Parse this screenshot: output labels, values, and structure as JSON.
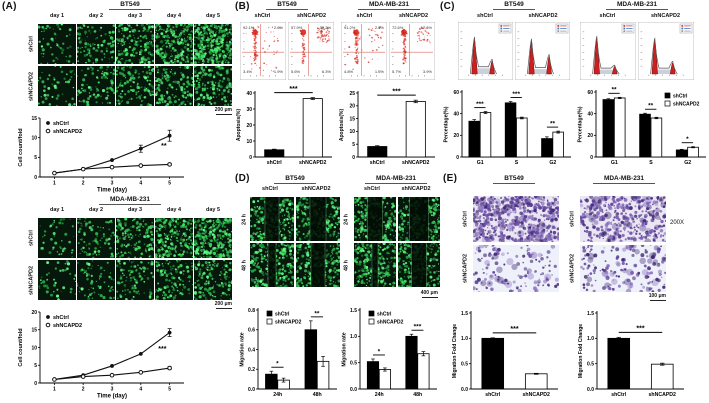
{
  "panelA": {
    "label": "(A)",
    "row_labels": [
      "shCtrl",
      "shNCAPD2"
    ],
    "blocks": [
      {
        "cell_line": "BT549",
        "days": [
          "day 1",
          "day 2",
          "day 3",
          "day 4",
          "day 5"
        ],
        "scale_bar": "200 μm"
      },
      {
        "cell_line": "MDA-MB-231",
        "days": [
          "day 1",
          "day 2",
          "day 3",
          "day 4",
          "day 5"
        ],
        "scale_bar": "200 μm"
      }
    ]
  },
  "panelB": {
    "label": "(B)",
    "cell_lines": [
      "BT549",
      "MDA-MB-231"
    ],
    "conditions": [
      "shCtrl",
      "shNCAPD2"
    ],
    "flow_plots": [
      {
        "cell_line": "BT549",
        "condition": "shCtrl",
        "quadrants": {
          "ul": "92.1%",
          "ur": "2.6%",
          "ll": "3.4%",
          "lr": "1.9%"
        }
      },
      {
        "cell_line": "BT549",
        "condition": "shNCAPD2",
        "quadrants": {
          "ul": "57.9%",
          "ur": "30.2%",
          "ll": "5.6%",
          "lr": "6.3%"
        }
      },
      {
        "cell_line": "MDA-MB-231",
        "condition": "shCtrl",
        "quadrants": {
          "ul": "91.2%",
          "ur": "2.5%",
          "ll": "4.8%",
          "lr": "1.5%"
        }
      },
      {
        "cell_line": "MDA-MB-231",
        "condition": "shNCAPD2",
        "quadrants": {
          "ul": "72.6%",
          "ur": "17.8%",
          "ll": "5.7%",
          "lr": "3.9%"
        }
      }
    ]
  },
  "panelC": {
    "label": "(C)",
    "cell_lines": [
      "BT549",
      "MDA-MB-231"
    ],
    "conditions": [
      "shCtrl",
      "shNCAPD2"
    ]
  },
  "panelD": {
    "label": "(D)",
    "cell_lines": [
      "BT549",
      "MDA-MB-231"
    ],
    "conditions": [
      "shCtrl",
      "shNCAPD2"
    ],
    "row_labels": [
      "24 h",
      "48 h"
    ],
    "scale_bar": "400 μm"
  },
  "panelE": {
    "label": "(E)",
    "cell_lines": [
      "BT549",
      "MDA-MB-231"
    ],
    "conditions": [
      "shCtrl",
      "shNCAPD2"
    ],
    "magnification": "200X",
    "scale_bar": "100 μm"
  },
  "legend_labels": [
    "shCtrl",
    "shNCAPD2"
  ],
  "colors": {
    "shCtrl_bar": "#000000",
    "shNCAPD2_bar": "#ffffff",
    "flow_scatter": "#e23a2e",
    "cellcycle_peak": "#cc2020",
    "micro_green": "#39e25b",
    "transwell_purple": "#5a3f96"
  },
  "chart_data": [
    {
      "id": "bt549-growth",
      "type": "line",
      "cell_line": "BT549",
      "x": [
        1,
        2,
        3,
        4,
        5
      ],
      "xlabel": "Time (day)",
      "ylabel": "Cell count/fold",
      "ylim": [
        0,
        15
      ],
      "yticks": [
        0,
        5,
        10,
        15
      ],
      "series": [
        {
          "name": "shCtrl",
          "marker": "filled",
          "values": [
            1,
            2,
            4.3,
            7.2,
            10.5
          ],
          "errors": [
            0,
            0,
            0,
            0.9,
            1.4
          ]
        },
        {
          "name": "shNCAPD2",
          "marker": "open",
          "values": [
            1,
            2,
            2.5,
            2.9,
            3.2
          ],
          "errors": [
            0,
            0,
            0,
            0,
            0.3
          ]
        }
      ],
      "sig": {
        "label": "**",
        "x": 4.8,
        "y": 7.4
      },
      "legend": [
        "shCtrl",
        "shNCAPD2"
      ]
    },
    {
      "id": "mda-growth",
      "type": "line",
      "cell_line": "MDA-MB-231",
      "x": [
        1,
        2,
        3,
        4,
        5
      ],
      "xlabel": "Time (day)",
      "ylabel": "Cell count/fold",
      "ylim": [
        0,
        20
      ],
      "yticks": [
        0,
        5,
        10,
        15,
        20
      ],
      "series": [
        {
          "name": "shCtrl",
          "marker": "filled",
          "values": [
            1,
            2.2,
            4.8,
            8.2,
            14.2
          ],
          "errors": [
            0,
            0,
            0,
            0,
            1.1
          ]
        },
        {
          "name": "shNCAPD2",
          "marker": "open",
          "values": [
            1,
            1.8,
            2.2,
            3,
            4.2
          ],
          "errors": [
            0,
            0,
            0,
            0,
            0.4
          ]
        }
      ],
      "sig": {
        "label": "***",
        "x": 4.75,
        "y": 9
      },
      "legend": [
        "shCtrl",
        "shNCAPD2"
      ]
    },
    {
      "id": "bt549-apoptosis",
      "type": "bar",
      "cell_line": "BT549",
      "ylabel": "Apoptosis(%)",
      "categories": [
        "shCtrl",
        "shNCAPD2"
      ],
      "values": [
        4.5,
        36.5
      ],
      "errors": [
        0.4,
        0.6
      ],
      "colors": [
        "#000000",
        "#ffffff"
      ],
      "ylim": [
        0,
        40
      ],
      "yticks": [
        0,
        10,
        20,
        30,
        40
      ],
      "sig": "***"
    },
    {
      "id": "mda-apoptosis",
      "type": "bar",
      "cell_line": "MDA-MB-231",
      "ylabel": "Apoptosis(%)",
      "categories": [
        "shCtrl",
        "shNCAPD2"
      ],
      "values": [
        4.1,
        21.7
      ],
      "errors": [
        0.3,
        0.5
      ],
      "colors": [
        "#000000",
        "#ffffff"
      ],
      "ylim": [
        0,
        25
      ],
      "yticks": [
        0,
        5,
        10,
        15,
        20,
        25
      ],
      "sig": "***"
    },
    {
      "id": "bt549-cellcycle",
      "type": "grouped-bar",
      "cell_line": "BT549",
      "ylabel": "Percentage(%)",
      "categories": [
        "G1",
        "S",
        "G2"
      ],
      "ylim": [
        0,
        60
      ],
      "yticks": [
        0,
        20,
        40,
        60
      ],
      "series": [
        {
          "name": "shCtrl",
          "color": "#000000",
          "values": [
            33,
            50,
            17
          ],
          "errors": [
            1.5,
            1.2,
            1.6
          ]
        },
        {
          "name": "shNCAPD2",
          "color": "#ffffff",
          "values": [
            41,
            36,
            23
          ],
          "errors": [
            0.9,
            0.8,
            0.9
          ]
        }
      ],
      "sig": [
        "***",
        "***",
        "**"
      ],
      "legend": false
    },
    {
      "id": "mda-cellcycle",
      "type": "grouped-bar",
      "cell_line": "MDA-MB-231",
      "ylabel": "Percentage(%)",
      "categories": [
        "G1",
        "S",
        "G2"
      ],
      "ylim": [
        0,
        60
      ],
      "yticks": [
        0,
        20,
        40,
        60
      ],
      "series": [
        {
          "name": "shCtrl",
          "color": "#000000",
          "values": [
            53,
            39.5,
            6.5
          ],
          "errors": [
            0.8,
            0.9,
            0.6
          ]
        },
        {
          "name": "shNCAPD2",
          "color": "#ffffff",
          "values": [
            54.5,
            36,
            9
          ],
          "errors": [
            0.6,
            0.7,
            0.5
          ]
        }
      ],
      "sig": [
        "**",
        "**",
        "*"
      ],
      "legend": "tr"
    },
    {
      "id": "bt549-migration-rate",
      "type": "grouped-bar",
      "cell_line": "BT549",
      "ylabel": "Migration rate",
      "categories": [
        "24h",
        "48h"
      ],
      "ylim": [
        0,
        0.8
      ],
      "yticks": [
        0,
        0.2,
        0.4,
        0.6,
        0.8
      ],
      "ytick_labels": [
        "0.0",
        "0.2",
        "0.4",
        "0.6",
        "0.8"
      ],
      "series": [
        {
          "name": "shCtrl",
          "color": "#000000",
          "values": [
            0.15,
            0.6
          ],
          "errors": [
            0.03,
            0.09
          ]
        },
        {
          "name": "shNCAPD2",
          "color": "#ffffff",
          "values": [
            0.09,
            0.28
          ],
          "errors": [
            0.02,
            0.05
          ]
        }
      ],
      "sig": [
        "*",
        "**"
      ],
      "legend": "tl"
    },
    {
      "id": "mda-migration-rate",
      "type": "grouped-bar",
      "cell_line": "MDA-MB-231",
      "ylabel": "Migration rate",
      "categories": [
        "24h",
        "48h"
      ],
      "ylim": [
        0,
        1.5
      ],
      "yticks": [
        0,
        0.5,
        1,
        1.5
      ],
      "ytick_labels": [
        "0.0",
        "0.5",
        "1.0",
        "1.5"
      ],
      "series": [
        {
          "name": "shCtrl",
          "color": "#000000",
          "values": [
            0.52,
            1.0
          ],
          "errors": [
            0.05,
            0.04
          ]
        },
        {
          "name": "shNCAPD2",
          "color": "#ffffff",
          "values": [
            0.37,
            0.67
          ],
          "errors": [
            0.03,
            0.04
          ]
        }
      ],
      "sig": [
        "*",
        "***"
      ],
      "legend": "tl"
    },
    {
      "id": "bt549-migration-fold",
      "type": "bar",
      "cell_line": "BT549",
      "ylabel": "Migration Fold Change",
      "categories": [
        "shCtrl",
        "shNCAPD2"
      ],
      "values": [
        1.0,
        0.3
      ],
      "errors": [
        0.01,
        0.01
      ],
      "colors": [
        "#000000",
        "#ffffff"
      ],
      "ylim": [
        0,
        1.5
      ],
      "yticks": [
        0,
        0.5,
        1,
        1.5
      ],
      "ytick_labels": [
        "0.0",
        "0.5",
        "1.0",
        "1.5"
      ],
      "sig": "***"
    },
    {
      "id": "mda-migration-fold",
      "type": "bar",
      "cell_line": "MDA-MB-231",
      "ylabel": "Migration Fold Change",
      "categories": [
        "shCtrl",
        "shNCAPD2"
      ],
      "values": [
        1.0,
        0.49
      ],
      "errors": [
        0.02,
        0.02
      ],
      "colors": [
        "#000000",
        "#ffffff"
      ],
      "ylim": [
        0,
        1.5
      ],
      "yticks": [
        0,
        0.5,
        1,
        1.5
      ],
      "ytick_labels": [
        "0.0",
        "0.5",
        "1.0",
        "1.5"
      ],
      "sig": "***"
    }
  ]
}
